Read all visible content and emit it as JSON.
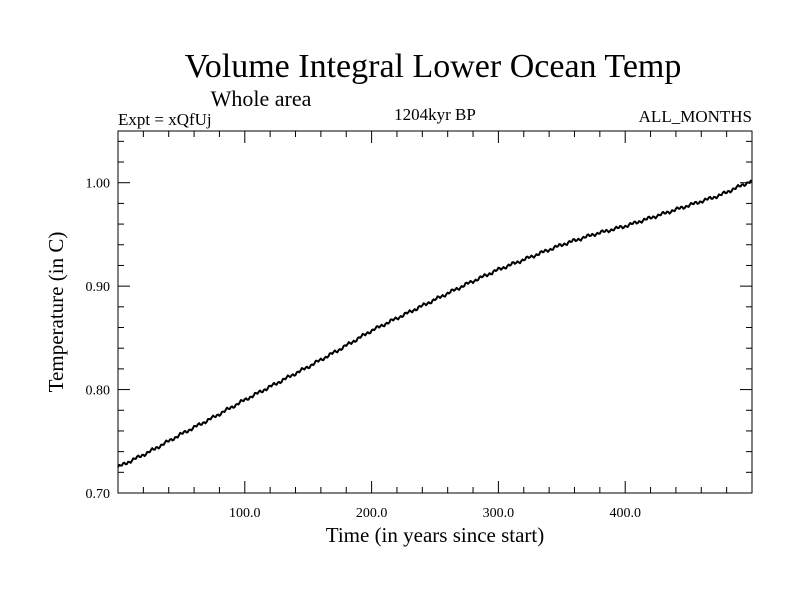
{
  "chart_data": {
    "type": "line",
    "title": "Volume Integral Lower Ocean Temp",
    "subtitle": "Whole area",
    "header_left": "Expt = xQfUj",
    "header_center": "1204kyr BP",
    "header_right": "ALL_MONTHS",
    "xlabel": "Time (in years since start)",
    "ylabel": "Temperature (in C)",
    "xlim": [
      0,
      500
    ],
    "ylim": [
      0.7,
      1.05
    ],
    "x_ticks": [
      {
        "value": 100,
        "label": "100.0"
      },
      {
        "value": 200,
        "label": "200.0"
      },
      {
        "value": 300,
        "label": "300.0"
      },
      {
        "value": 400,
        "label": "400.0"
      }
    ],
    "y_ticks": [
      {
        "value": 0.7,
        "label": "0.70"
      },
      {
        "value": 0.8,
        "label": "0.80"
      },
      {
        "value": 0.9,
        "label": "0.90"
      },
      {
        "value": 1.0,
        "label": "1.00"
      }
    ],
    "grid": false,
    "series": [
      {
        "name": "Volume Integral Lower Ocean Temp",
        "color": "#000000",
        "x": [
          0,
          25,
          50,
          75,
          100,
          125,
          150,
          175,
          200,
          225,
          250,
          275,
          300,
          325,
          350,
          375,
          400,
          425,
          450,
          475,
          500
        ],
        "y": [
          0.725,
          0.74,
          0.757,
          0.773,
          0.79,
          0.806,
          0.822,
          0.839,
          0.857,
          0.872,
          0.887,
          0.902,
          0.916,
          0.928,
          0.94,
          0.95,
          0.958,
          0.968,
          0.978,
          0.988,
          1.002
        ]
      }
    ]
  }
}
